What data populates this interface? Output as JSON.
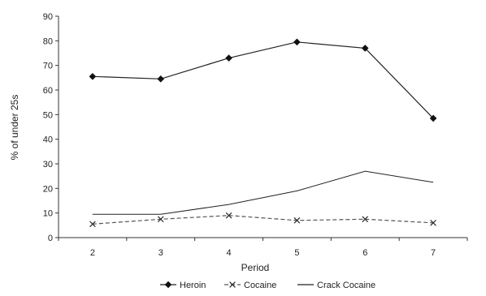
{
  "chart_data": {
    "type": "line",
    "title": "",
    "xlabel": "Period",
    "ylabel": "% of under 25s",
    "x": [
      2,
      3,
      4,
      5,
      6,
      7
    ],
    "xlim": [
      1.5,
      7.5
    ],
    "ylim": [
      0,
      90
    ],
    "yticks": [
      0,
      10,
      20,
      30,
      40,
      50,
      60,
      70,
      80,
      90
    ],
    "grid": false,
    "legend_position": "bottom",
    "series": [
      {
        "name": "Heroin",
        "marker": "diamond",
        "line": "solid",
        "values": [
          65.5,
          64.5,
          73,
          79.5,
          77,
          48.5
        ]
      },
      {
        "name": "Cocaine",
        "marker": "x",
        "line": "dashed",
        "values": [
          5.5,
          7.5,
          9,
          7,
          7.5,
          6
        ]
      },
      {
        "name": "Crack Cocaine",
        "marker": "none",
        "line": "solid",
        "values": [
          9.5,
          9.5,
          13.5,
          19,
          27,
          22.5
        ]
      }
    ]
  }
}
